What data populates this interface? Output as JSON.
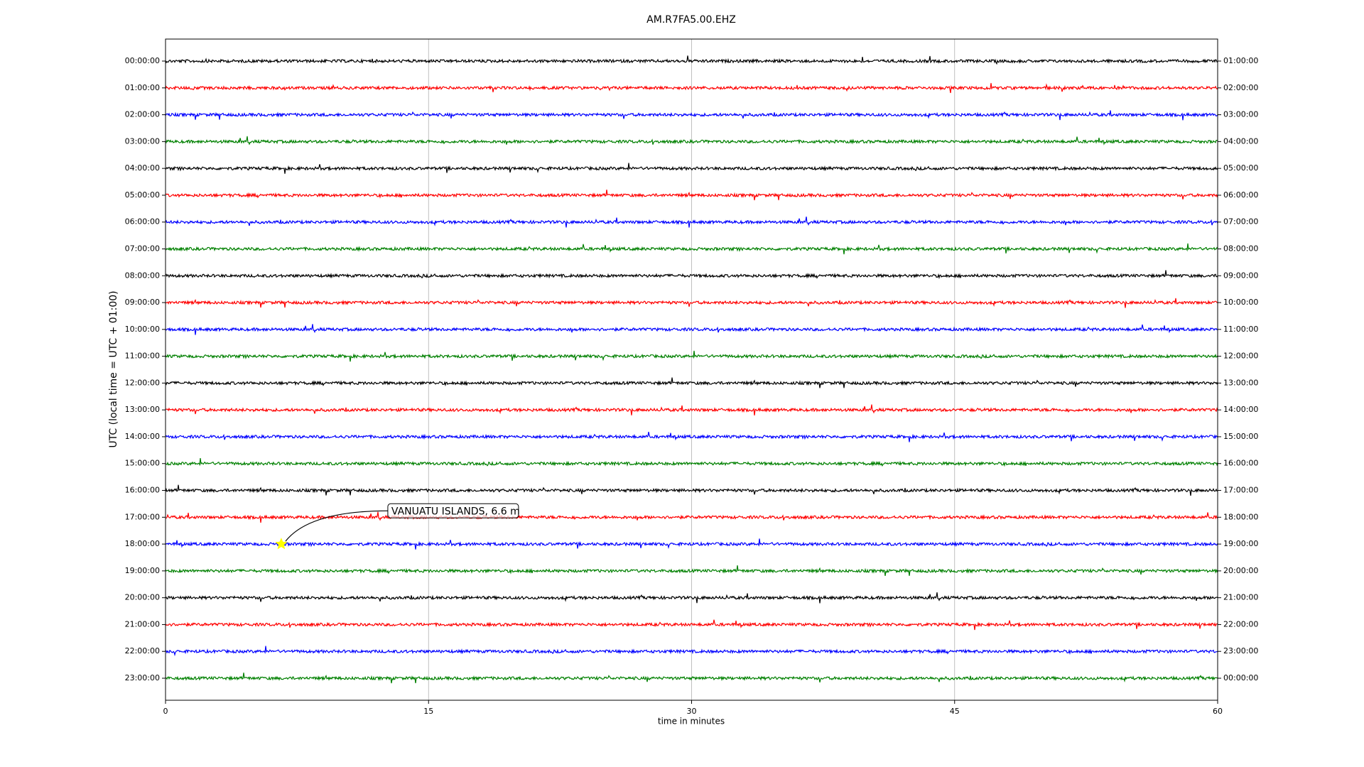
{
  "chart_data": {
    "type": "helicorder",
    "title": "AM.R7FA5.00.EHZ",
    "xlabel": "time in minutes",
    "ylabel": "UTC (local time = UTC + 01:00)",
    "xlim": [
      0,
      60
    ],
    "xticks": [
      0,
      15,
      30,
      45,
      60
    ],
    "grid": true,
    "rows": [
      {
        "label": "00:00:00",
        "right_label": "01:00:00",
        "color": "#000000"
      },
      {
        "label": "01:00:00",
        "right_label": "02:00:00",
        "color": "#ff0000"
      },
      {
        "label": "02:00:00",
        "right_label": "03:00:00",
        "color": "#0000ff"
      },
      {
        "label": "03:00:00",
        "right_label": "04:00:00",
        "color": "#008000"
      },
      {
        "label": "04:00:00",
        "right_label": "05:00:00",
        "color": "#000000"
      },
      {
        "label": "05:00:00",
        "right_label": "06:00:00",
        "color": "#ff0000"
      },
      {
        "label": "06:00:00",
        "right_label": "07:00:00",
        "color": "#0000ff"
      },
      {
        "label": "07:00:00",
        "right_label": "08:00:00",
        "color": "#008000"
      },
      {
        "label": "08:00:00",
        "right_label": "09:00:00",
        "color": "#000000"
      },
      {
        "label": "09:00:00",
        "right_label": "10:00:00",
        "color": "#ff0000"
      },
      {
        "label": "10:00:00",
        "right_label": "11:00:00",
        "color": "#0000ff"
      },
      {
        "label": "11:00:00",
        "right_label": "12:00:00",
        "color": "#008000"
      },
      {
        "label": "12:00:00",
        "right_label": "13:00:00",
        "color": "#000000"
      },
      {
        "label": "13:00:00",
        "right_label": "14:00:00",
        "color": "#ff0000"
      },
      {
        "label": "14:00:00",
        "right_label": "15:00:00",
        "color": "#0000ff"
      },
      {
        "label": "15:00:00",
        "right_label": "16:00:00",
        "color": "#008000"
      },
      {
        "label": "16:00:00",
        "right_label": "17:00:00",
        "color": "#000000"
      },
      {
        "label": "17:00:00",
        "right_label": "18:00:00",
        "color": "#ff0000"
      },
      {
        "label": "18:00:00",
        "right_label": "19:00:00",
        "color": "#0000ff"
      },
      {
        "label": "19:00:00",
        "right_label": "20:00:00",
        "color": "#008000"
      },
      {
        "label": "20:00:00",
        "right_label": "21:00:00",
        "color": "#000000"
      },
      {
        "label": "21:00:00",
        "right_label": "22:00:00",
        "color": "#ff0000"
      },
      {
        "label": "22:00:00",
        "right_label": "23:00:00",
        "color": "#0000ff"
      },
      {
        "label": "23:00:00",
        "right_label": "00:00:00",
        "color": "#008000"
      }
    ],
    "event": {
      "x": 6.6,
      "row": 18,
      "label": "VANUATU ISLANDS, 6.6 m",
      "color": "#ffff00"
    }
  }
}
